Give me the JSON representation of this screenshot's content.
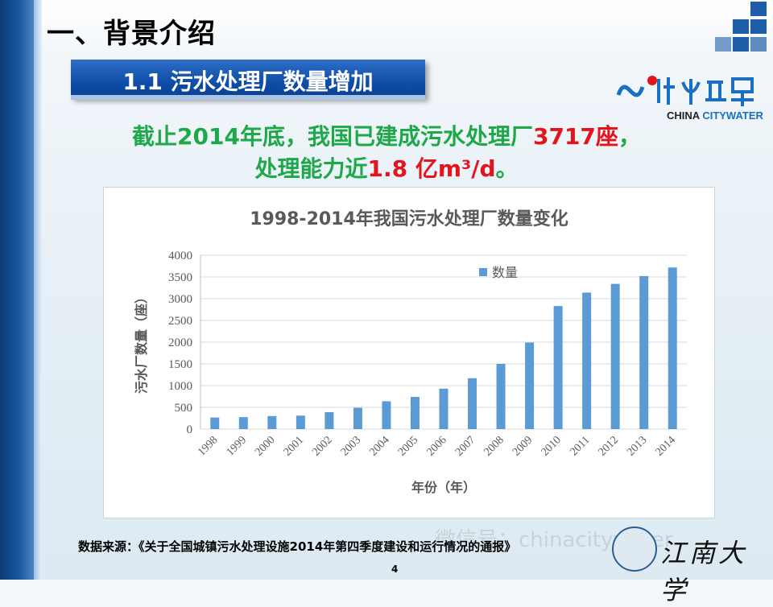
{
  "heading": "一、背景介绍",
  "section_title": "1.1 污水处理厂数量增加",
  "logo": {
    "text_china": "CHINA",
    "text_citywater": "CITYWATER"
  },
  "statement": {
    "line1_prefix": "截止2014年底，我国已建成污水处理厂",
    "line1_value": "3717座",
    "line1_suffix": "，",
    "line2_prefix": "处理能力近",
    "line2_value": "1.8 亿m³/d",
    "line2_suffix": "。"
  },
  "colors": {
    "bar": "#5b9bd5",
    "green": "#1ea84a",
    "red": "#e3141b",
    "band": "#0f4da8"
  },
  "chart_data": {
    "type": "bar",
    "title": "1998-2014年我国污水处理厂数量变化",
    "xlabel": "年份（年）",
    "ylabel": "污水厂数量（座）",
    "categories": [
      "1998",
      "1999",
      "2000",
      "2001",
      "2002",
      "2003",
      "2004",
      "2005",
      "2006",
      "2007",
      "2008",
      "2009",
      "2010",
      "2011",
      "2012",
      "2013",
      "2014"
    ],
    "series": [
      {
        "name": "数量",
        "values": [
          266,
          275,
          300,
          310,
          390,
          490,
          640,
          740,
          930,
          1170,
          1500,
          1990,
          2830,
          3140,
          3340,
          3520,
          3717
        ]
      }
    ],
    "ylim": [
      0,
      4000
    ],
    "yticks": [
      0,
      500,
      1000,
      1500,
      2000,
      2500,
      3000,
      3500,
      4000
    ],
    "grid": true,
    "legend": "top-left"
  },
  "source": "数据来源：《关于全国城镇污水处理设施2014年第四季度建设和运行情况的通报》",
  "watermark": "微信号：chinacitywater",
  "page_number": "4",
  "university": "江南大学"
}
